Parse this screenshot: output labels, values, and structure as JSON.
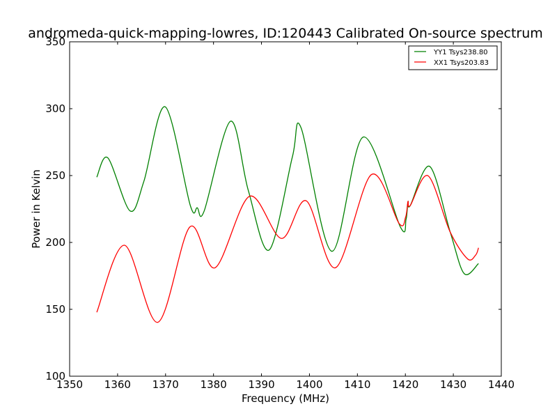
{
  "chart_data": {
    "type": "line",
    "title": "andromeda-quick-mapping-lowres, ID:120443 Calibrated On-source spectrum",
    "xlabel": "Frequency (MHz)",
    "ylabel": "Power in Kelvin",
    "xlim": [
      1350,
      1440
    ],
    "ylim": [
      100,
      350
    ],
    "xticks": [
      1350,
      1360,
      1370,
      1380,
      1390,
      1400,
      1410,
      1420,
      1430,
      1440
    ],
    "yticks": [
      100,
      150,
      200,
      250,
      300,
      350
    ],
    "grid": false,
    "legend_position": "top-right",
    "series": [
      {
        "name": "YY1 Tsys238.80",
        "color": "#008000",
        "x": [
          1355.66,
          1357.98,
          1362.59,
          1365.49,
          1369.93,
          1375.16,
          1376.61,
          1378.06,
          1383.53,
          1387.25,
          1391.62,
          1396.45,
          1398.24,
          1404.68,
          1411.2,
          1418.95,
          1420.14,
          1420.55,
          1421.02,
          1425.08,
          1429.35,
          1432.25,
          1435.25
        ],
        "y": [
          248.8,
          263.2,
          223.6,
          245.8,
          301.4,
          227.6,
          225.9,
          223.6,
          290.6,
          238.9,
          194.4,
          264.1,
          285.8,
          193.4,
          278.8,
          211.6,
          217.2,
          230.6,
          227.6,
          256.8,
          207.7,
          176.7,
          184.2
        ]
      },
      {
        "name": "XX1 Tsys203.83",
        "color": "#ff0000",
        "x": [
          1355.66,
          1361.45,
          1368.39,
          1375.07,
          1380.34,
          1387.5,
          1394.17,
          1399.35,
          1405.45,
          1412.9,
          1418.69,
          1420.05,
          1420.55,
          1421.02,
          1424.75,
          1429.35,
          1432.97,
          1434.66,
          1435.25
        ],
        "y": [
          147.8,
          197.9,
          140.3,
          211.6,
          181.1,
          234.5,
          203.0,
          231.1,
          181.1,
          250.7,
          214.2,
          218.9,
          230.6,
          227.6,
          249.8,
          207.7,
          187.7,
          190.6,
          196.0
        ]
      }
    ]
  }
}
